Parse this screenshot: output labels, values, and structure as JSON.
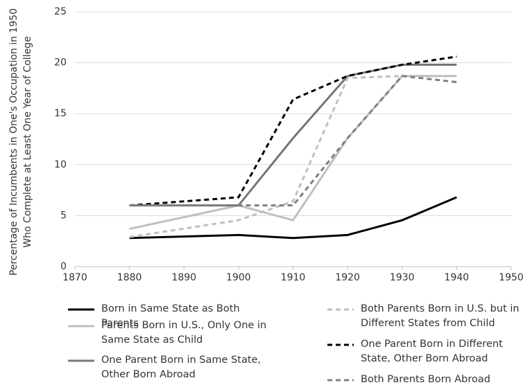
{
  "chart_data": {
    "type": "line",
    "ylabel": [
      "Percentage of Incumbents in One's Occupation in 1950",
      "Who Complete at Least One Year of College"
    ],
    "x": [
      1880,
      1900,
      1910,
      1920,
      1930,
      1940
    ],
    "xlim": [
      1870,
      1950
    ],
    "xticks": [
      1870,
      1880,
      1890,
      1900,
      1910,
      1920,
      1930,
      1940,
      1950
    ],
    "ylim": [
      0,
      25
    ],
    "yticks": [
      0,
      5,
      10,
      15,
      20,
      25
    ],
    "grid": true,
    "legend": "bottom",
    "series": [
      {
        "name": "Born in Same State as Both Parents",
        "color": "#000000",
        "dash": false,
        "values": [
          2.8,
          3.1,
          2.8,
          3.1,
          4.55,
          6.8
        ]
      },
      {
        "name": "Parents Born in U.S., Only One in Same State as Child",
        "color": "#bfbfbf",
        "dash": false,
        "values": [
          3.7,
          6.0,
          4.55,
          12.6,
          18.7,
          18.7
        ]
      },
      {
        "name": "One Parent Born in Same State, Other Born Abroad",
        "color": "#767676",
        "dash": false,
        "values": [
          6.0,
          6.0,
          12.6,
          18.7,
          19.8,
          19.8
        ]
      },
      {
        "name": "Both Parents Born in U.S. but in Different States from Child",
        "color": "#bfbfbf",
        "dash": true,
        "values": [
          2.9,
          4.55,
          6.4,
          18.5,
          18.7,
          18.7
        ]
      },
      {
        "name": "One Parent Born in Different State, Other Born Abroad",
        "color": "#000000",
        "dash": true,
        "values": [
          6.0,
          6.8,
          16.4,
          18.7,
          19.8,
          20.6
        ]
      },
      {
        "name": "Both Parents Born Abroad",
        "color": "#7f7f7f",
        "dash": true,
        "values": [
          6.0,
          6.0,
          6.0,
          12.6,
          18.7,
          18.1
        ]
      }
    ]
  }
}
